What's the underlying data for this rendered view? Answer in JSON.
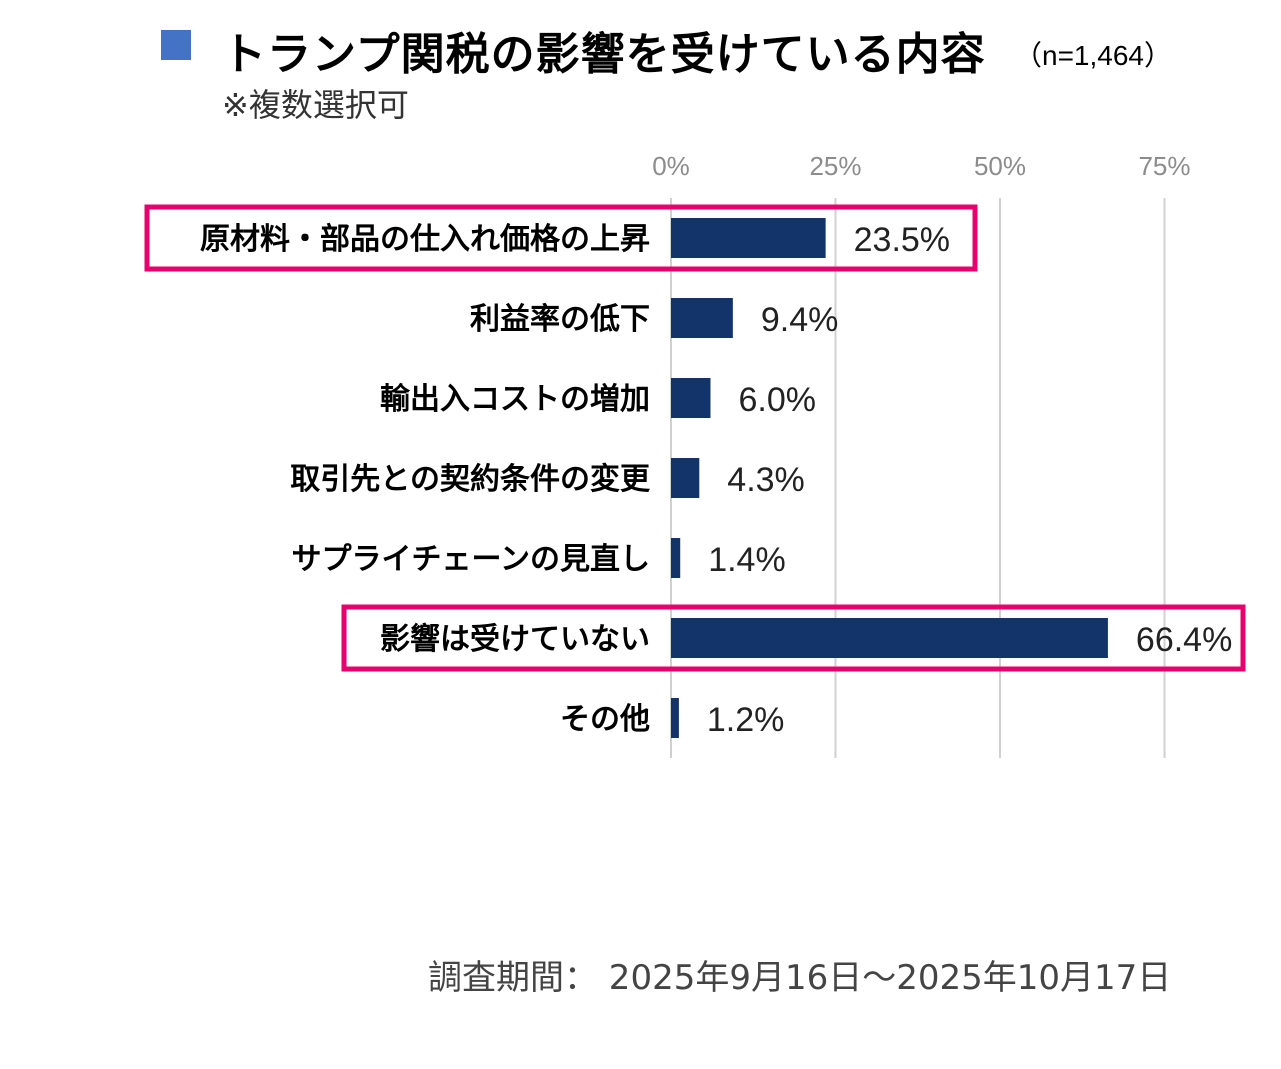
{
  "header": {
    "title": "トランプ関税の影響を受けている内容",
    "n_note": "（n=1,464）",
    "subtitle": "※複数選択可"
  },
  "footer": {
    "period": "調査期間：  2025年9月16日～2025年10月17日"
  },
  "colors": {
    "bar": "#13336b",
    "highlight": "#e8006e",
    "marker": "#4472c4",
    "grid": "#d0d0d0"
  },
  "chart_data": {
    "type": "bar",
    "orientation": "horizontal",
    "title": "トランプ関税の影響を受けている内容",
    "categories": [
      "原材料・部品の仕入れ価格の上昇",
      "利益率の低下",
      "輸出入コストの増加",
      "取引先との契約条件の変更",
      "サプライチェーンの見直し",
      "影響は受けていない",
      "その他"
    ],
    "values": [
      23.5,
      9.4,
      6.0,
      4.3,
      1.4,
      66.4,
      1.2
    ],
    "value_labels": [
      "23.5%",
      "9.4%",
      "6.0%",
      "4.3%",
      "1.4%",
      "66.4%",
      "1.2%"
    ],
    "highlighted": [
      true,
      false,
      false,
      false,
      false,
      true,
      false
    ],
    "xlim": [
      0,
      75
    ],
    "ticks": [
      0,
      25,
      50,
      75
    ],
    "tick_labels": [
      "0%",
      "25%",
      "50%",
      "75%"
    ],
    "grid": true,
    "legend": "none"
  }
}
